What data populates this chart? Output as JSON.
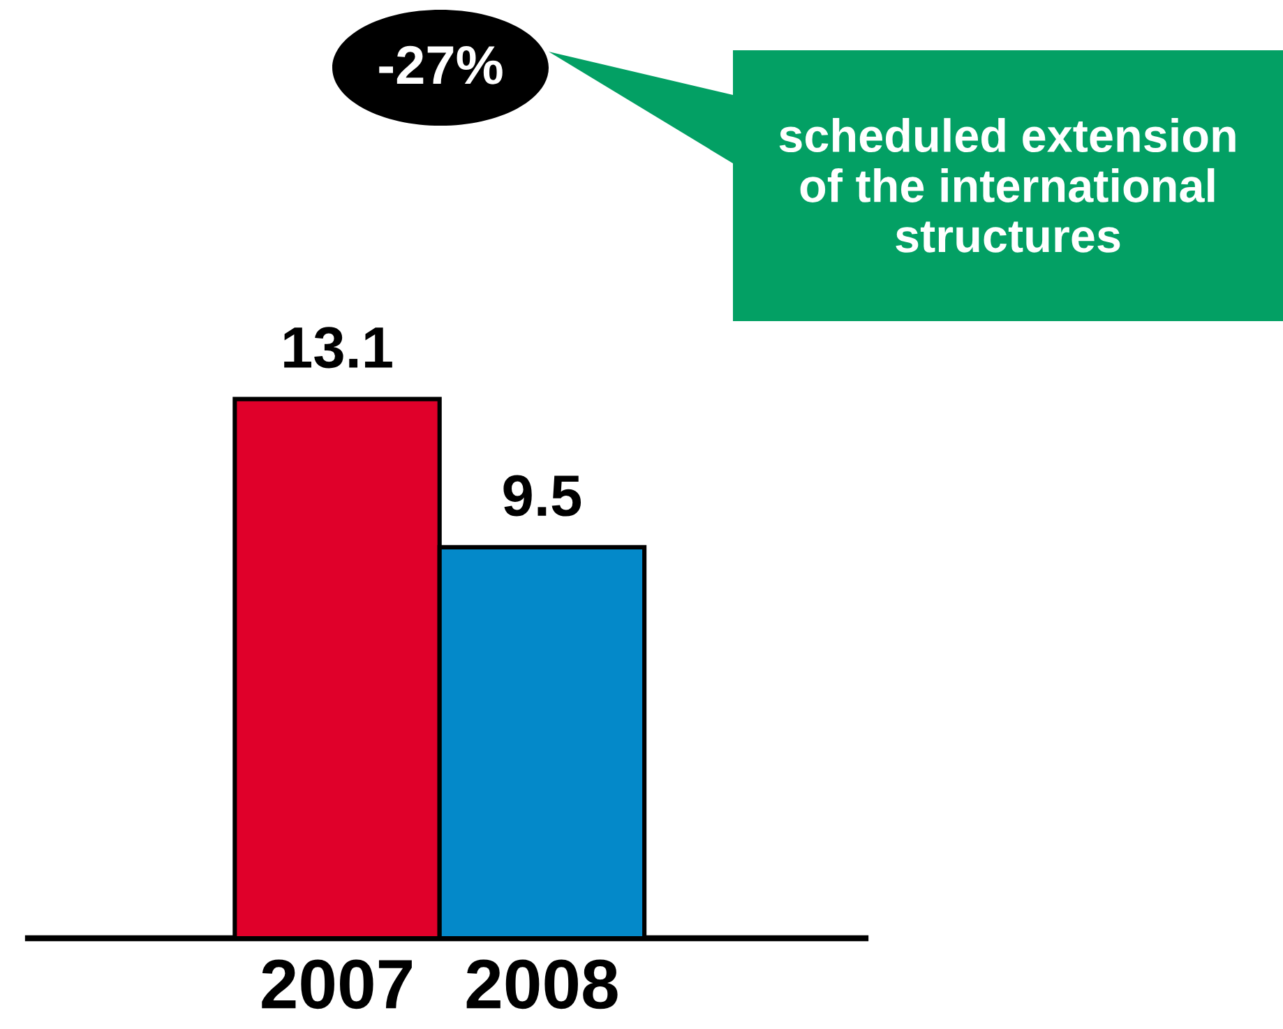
{
  "chart_data": {
    "type": "bar",
    "categories": [
      "2007",
      "2008"
    ],
    "values": [
      13.1,
      9.5
    ],
    "colors": [
      "#e0002a",
      "#0489c9"
    ],
    "data_labels": true,
    "annotations": [
      "-27%",
      "scheduled extension\nof the international\nstructures"
    ]
  }
}
